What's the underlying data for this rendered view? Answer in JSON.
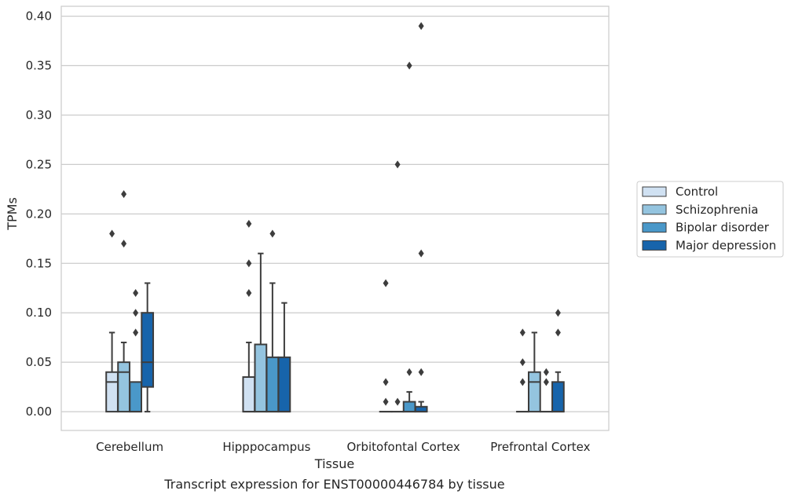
{
  "chart_data": {
    "type": "box",
    "title": "",
    "caption": "Transcript expression for ENST00000446784 by tissue",
    "xlabel": "Tissue",
    "ylabel": "TPMs",
    "ylim": [
      -0.019,
      0.41
    ],
    "yticks": [
      0.0,
      0.05,
      0.1,
      0.15,
      0.2,
      0.25,
      0.3,
      0.35,
      0.4
    ],
    "ytick_labels": [
      "0.00",
      "0.05",
      "0.10",
      "0.15",
      "0.20",
      "0.25",
      "0.30",
      "0.35",
      "0.40"
    ],
    "grid": "horizontal",
    "legend_position": "right",
    "categories": [
      "Cerebellum",
      "Hipppocampus",
      "Orbitofontal Cortex",
      "Prefrontal Cortex"
    ],
    "series": [
      {
        "name": "Control",
        "color": "#d0e1f2",
        "boxes": [
          {
            "min": 0.0,
            "q1": 0.0,
            "median": 0.03,
            "q3": 0.04,
            "max": 0.08,
            "outliers": [
              0.18
            ]
          },
          {
            "min": 0.0,
            "q1": 0.0,
            "median": 0.0,
            "q3": 0.035,
            "max": 0.07,
            "outliers": [
              0.12,
              0.15,
              0.19
            ]
          },
          {
            "min": 0.0,
            "q1": 0.0,
            "median": 0.0,
            "q3": 0.0,
            "max": 0.0,
            "outliers": [
              0.01,
              0.03,
              0.13
            ]
          },
          {
            "min": 0.0,
            "q1": 0.0,
            "median": 0.0,
            "q3": 0.0,
            "max": 0.0,
            "outliers": [
              0.03,
              0.05,
              0.08
            ]
          }
        ]
      },
      {
        "name": "Schizophrenia",
        "color": "#94c4df",
        "boxes": [
          {
            "min": 0.0,
            "q1": 0.0,
            "median": 0.04,
            "q3": 0.05,
            "max": 0.07,
            "outliers": [
              0.17,
              0.22
            ]
          },
          {
            "min": 0.0,
            "q1": 0.0,
            "median": 0.0,
            "q3": 0.068,
            "max": 0.16,
            "outliers": []
          },
          {
            "min": 0.0,
            "q1": 0.0,
            "median": 0.0,
            "q3": 0.0,
            "max": 0.0,
            "outliers": [
              0.01,
              0.25
            ]
          },
          {
            "min": 0.0,
            "q1": 0.0,
            "median": 0.03,
            "q3": 0.04,
            "max": 0.08,
            "outliers": []
          }
        ]
      },
      {
        "name": "Bipolar disorder",
        "color": "#4a98c9",
        "boxes": [
          {
            "min": 0.0,
            "q1": 0.0,
            "median": 0.0,
            "q3": 0.03,
            "max": 0.03,
            "outliers": [
              0.08,
              0.1,
              0.12
            ]
          },
          {
            "min": 0.0,
            "q1": 0.0,
            "median": 0.0,
            "q3": 0.055,
            "max": 0.13,
            "outliers": [
              0.18
            ]
          },
          {
            "min": 0.0,
            "q1": 0.0,
            "median": 0.0,
            "q3": 0.01,
            "max": 0.02,
            "outliers": [
              0.04,
              0.35
            ]
          },
          {
            "min": 0.0,
            "q1": 0.0,
            "median": 0.0,
            "q3": 0.0,
            "max": 0.0,
            "outliers": [
              0.03,
              0.04
            ]
          }
        ]
      },
      {
        "name": "Major depression",
        "color": "#1764ab",
        "boxes": [
          {
            "min": 0.0,
            "q1": 0.025,
            "median": 0.05,
            "q3": 0.1,
            "max": 0.13,
            "outliers": []
          },
          {
            "min": 0.0,
            "q1": 0.0,
            "median": 0.0,
            "q3": 0.055,
            "max": 0.11,
            "outliers": []
          },
          {
            "min": 0.0,
            "q1": 0.0,
            "median": 0.0,
            "q3": 0.005,
            "max": 0.01,
            "outliers": [
              0.04,
              0.16,
              0.39
            ]
          },
          {
            "min": 0.0,
            "q1": 0.0,
            "median": 0.0,
            "q3": 0.03,
            "max": 0.04,
            "outliers": [
              0.08,
              0.1
            ]
          }
        ]
      }
    ]
  }
}
